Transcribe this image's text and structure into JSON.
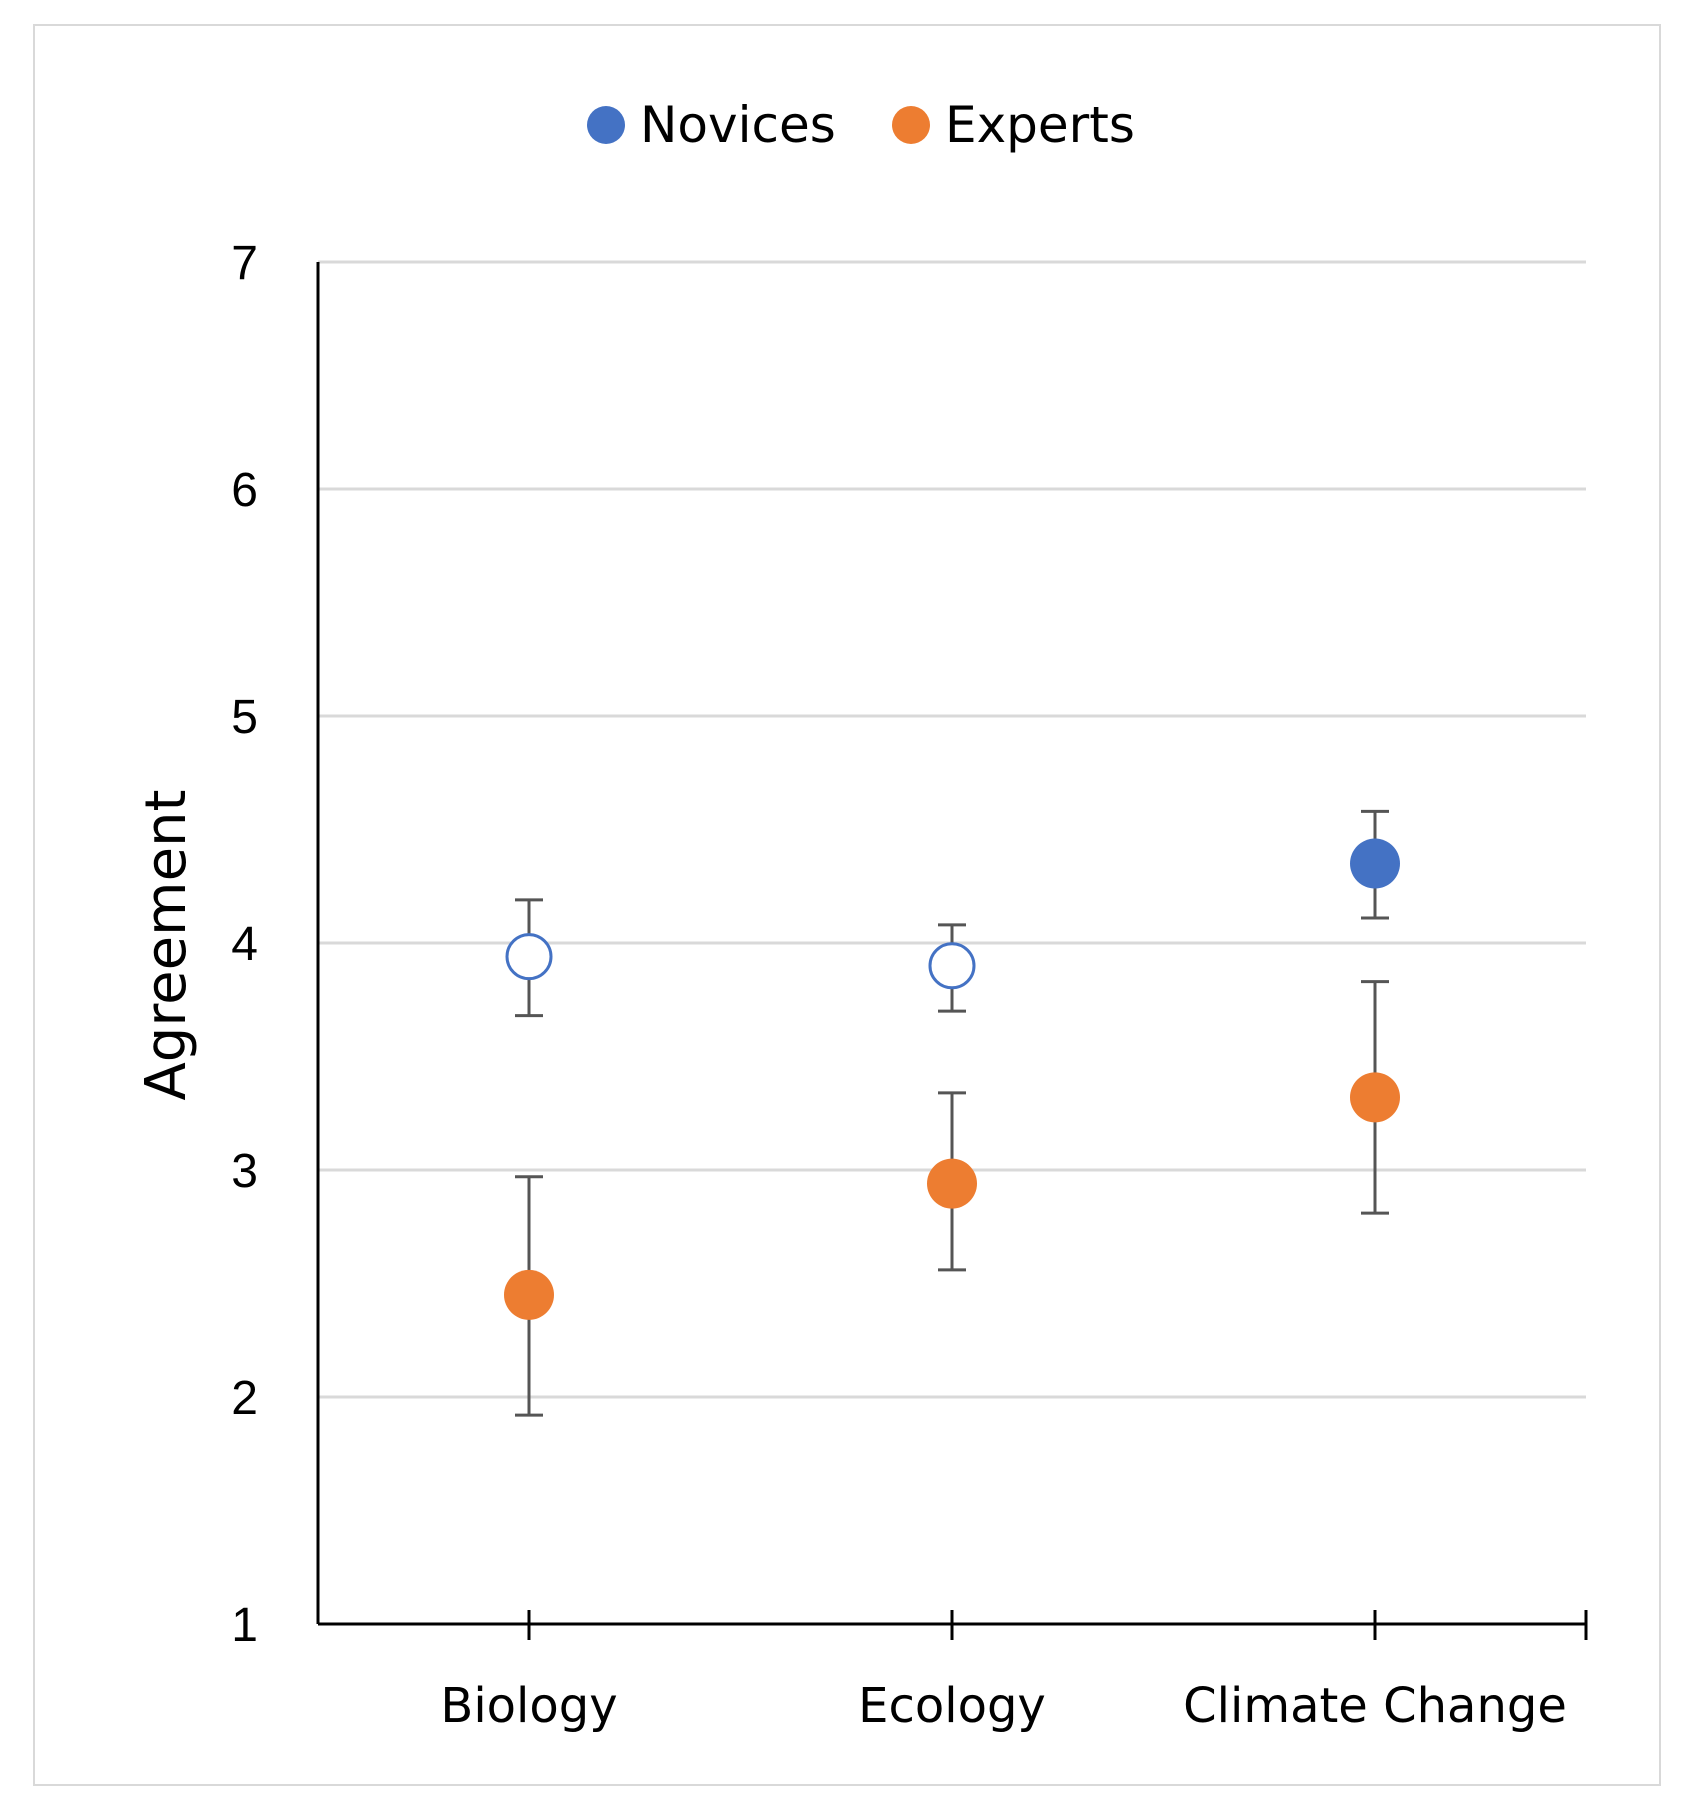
{
  "chart_data": {
    "type": "scatter",
    "categories": [
      "Biology",
      "Ecology",
      "Climate Change"
    ],
    "ylabel": "Agreement",
    "xlabel": "",
    "ylim": [
      1,
      7
    ],
    "yticks": [
      "1",
      "2",
      "3",
      "4",
      "5",
      "6",
      "7"
    ],
    "grid": true,
    "legend_position": "top-center",
    "series": [
      {
        "name": "Novices",
        "color": "#4472C4",
        "values": [
          3.94,
          3.9,
          4.35
        ],
        "err_low": [
          3.68,
          3.7,
          4.11
        ],
        "err_high": [
          4.19,
          4.08,
          4.58
        ],
        "filled": [
          false,
          false,
          true
        ]
      },
      {
        "name": "Experts",
        "color": "#ED7D31",
        "values": [
          2.45,
          2.94,
          3.32
        ],
        "err_low": [
          1.92,
          2.56,
          2.81
        ],
        "err_high": [
          2.97,
          3.34,
          3.83
        ],
        "filled": [
          true,
          true,
          true
        ]
      }
    ]
  }
}
